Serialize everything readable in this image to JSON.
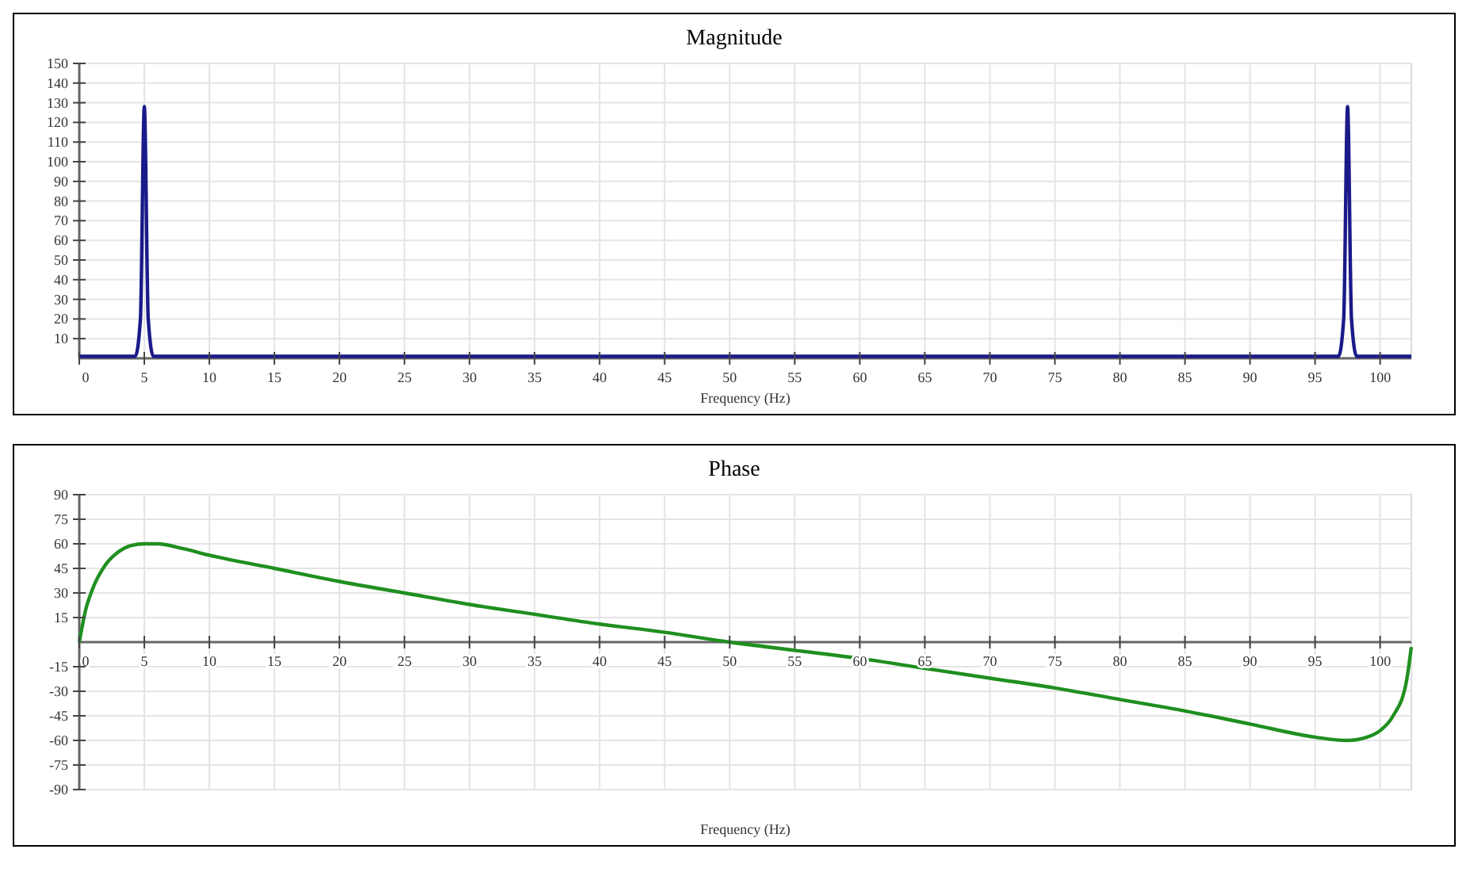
{
  "chart_data": [
    {
      "type": "line",
      "title": "Magnitude",
      "xlabel": "Frequency (Hz)",
      "grid": true,
      "marker": "none",
      "line_style": "solid",
      "xlim": [
        0,
        102.4
      ],
      "ylim": [
        0,
        150
      ],
      "xticks": [
        0,
        5,
        10,
        15,
        20,
        25,
        30,
        35,
        40,
        45,
        50,
        55,
        60,
        65,
        70,
        75,
        80,
        85,
        90,
        95,
        100
      ],
      "yticks": [
        10,
        20,
        30,
        40,
        50,
        60,
        70,
        80,
        90,
        100,
        110,
        120,
        130,
        140,
        150
      ],
      "series": [
        {
          "color": "#1a1a8a",
          "x": [
            0,
            4.3,
            4.7,
            5,
            5.3,
            5.7,
            96.8,
            97.2,
            97.5,
            97.8,
            98.2,
            102.4
          ],
          "values": [
            1,
            1,
            20,
            128,
            20,
            1,
            1,
            20,
            128,
            20,
            1,
            1
          ]
        }
      ]
    },
    {
      "type": "line",
      "title": "Phase",
      "xlabel": "Frequency (Hz)",
      "grid": true,
      "marker": "none",
      "line_style": "solid",
      "xlim": [
        0,
        102.4
      ],
      "ylim": [
        -90,
        90
      ],
      "xticks": [
        0,
        5,
        10,
        15,
        20,
        25,
        30,
        35,
        40,
        45,
        50,
        55,
        60,
        65,
        70,
        75,
        80,
        85,
        90,
        95,
        100
      ],
      "yticks": [
        -90,
        -75,
        -60,
        -45,
        -30,
        -15,
        15,
        30,
        45,
        60,
        75,
        90
      ],
      "series": [
        {
          "color": "#1f8f1f",
          "x": [
            0,
            0.5,
            1,
            2,
            3,
            4,
            5,
            6,
            8,
            10,
            15,
            20,
            25,
            30,
            35,
            40,
            45,
            50,
            55,
            60,
            65,
            70,
            75,
            80,
            85,
            90,
            95,
            97.5,
            99,
            100,
            101,
            102,
            102.4
          ],
          "values": [
            0,
            20,
            32,
            47,
            55,
            59,
            60,
            60,
            57,
            53,
            45,
            37,
            30,
            23,
            17,
            11,
            6,
            0,
            -5,
            -10,
            -16,
            -22,
            -28,
            -35,
            -42,
            -50,
            -58,
            -60,
            -58,
            -54,
            -45,
            -25,
            -3
          ]
        }
      ]
    }
  ]
}
